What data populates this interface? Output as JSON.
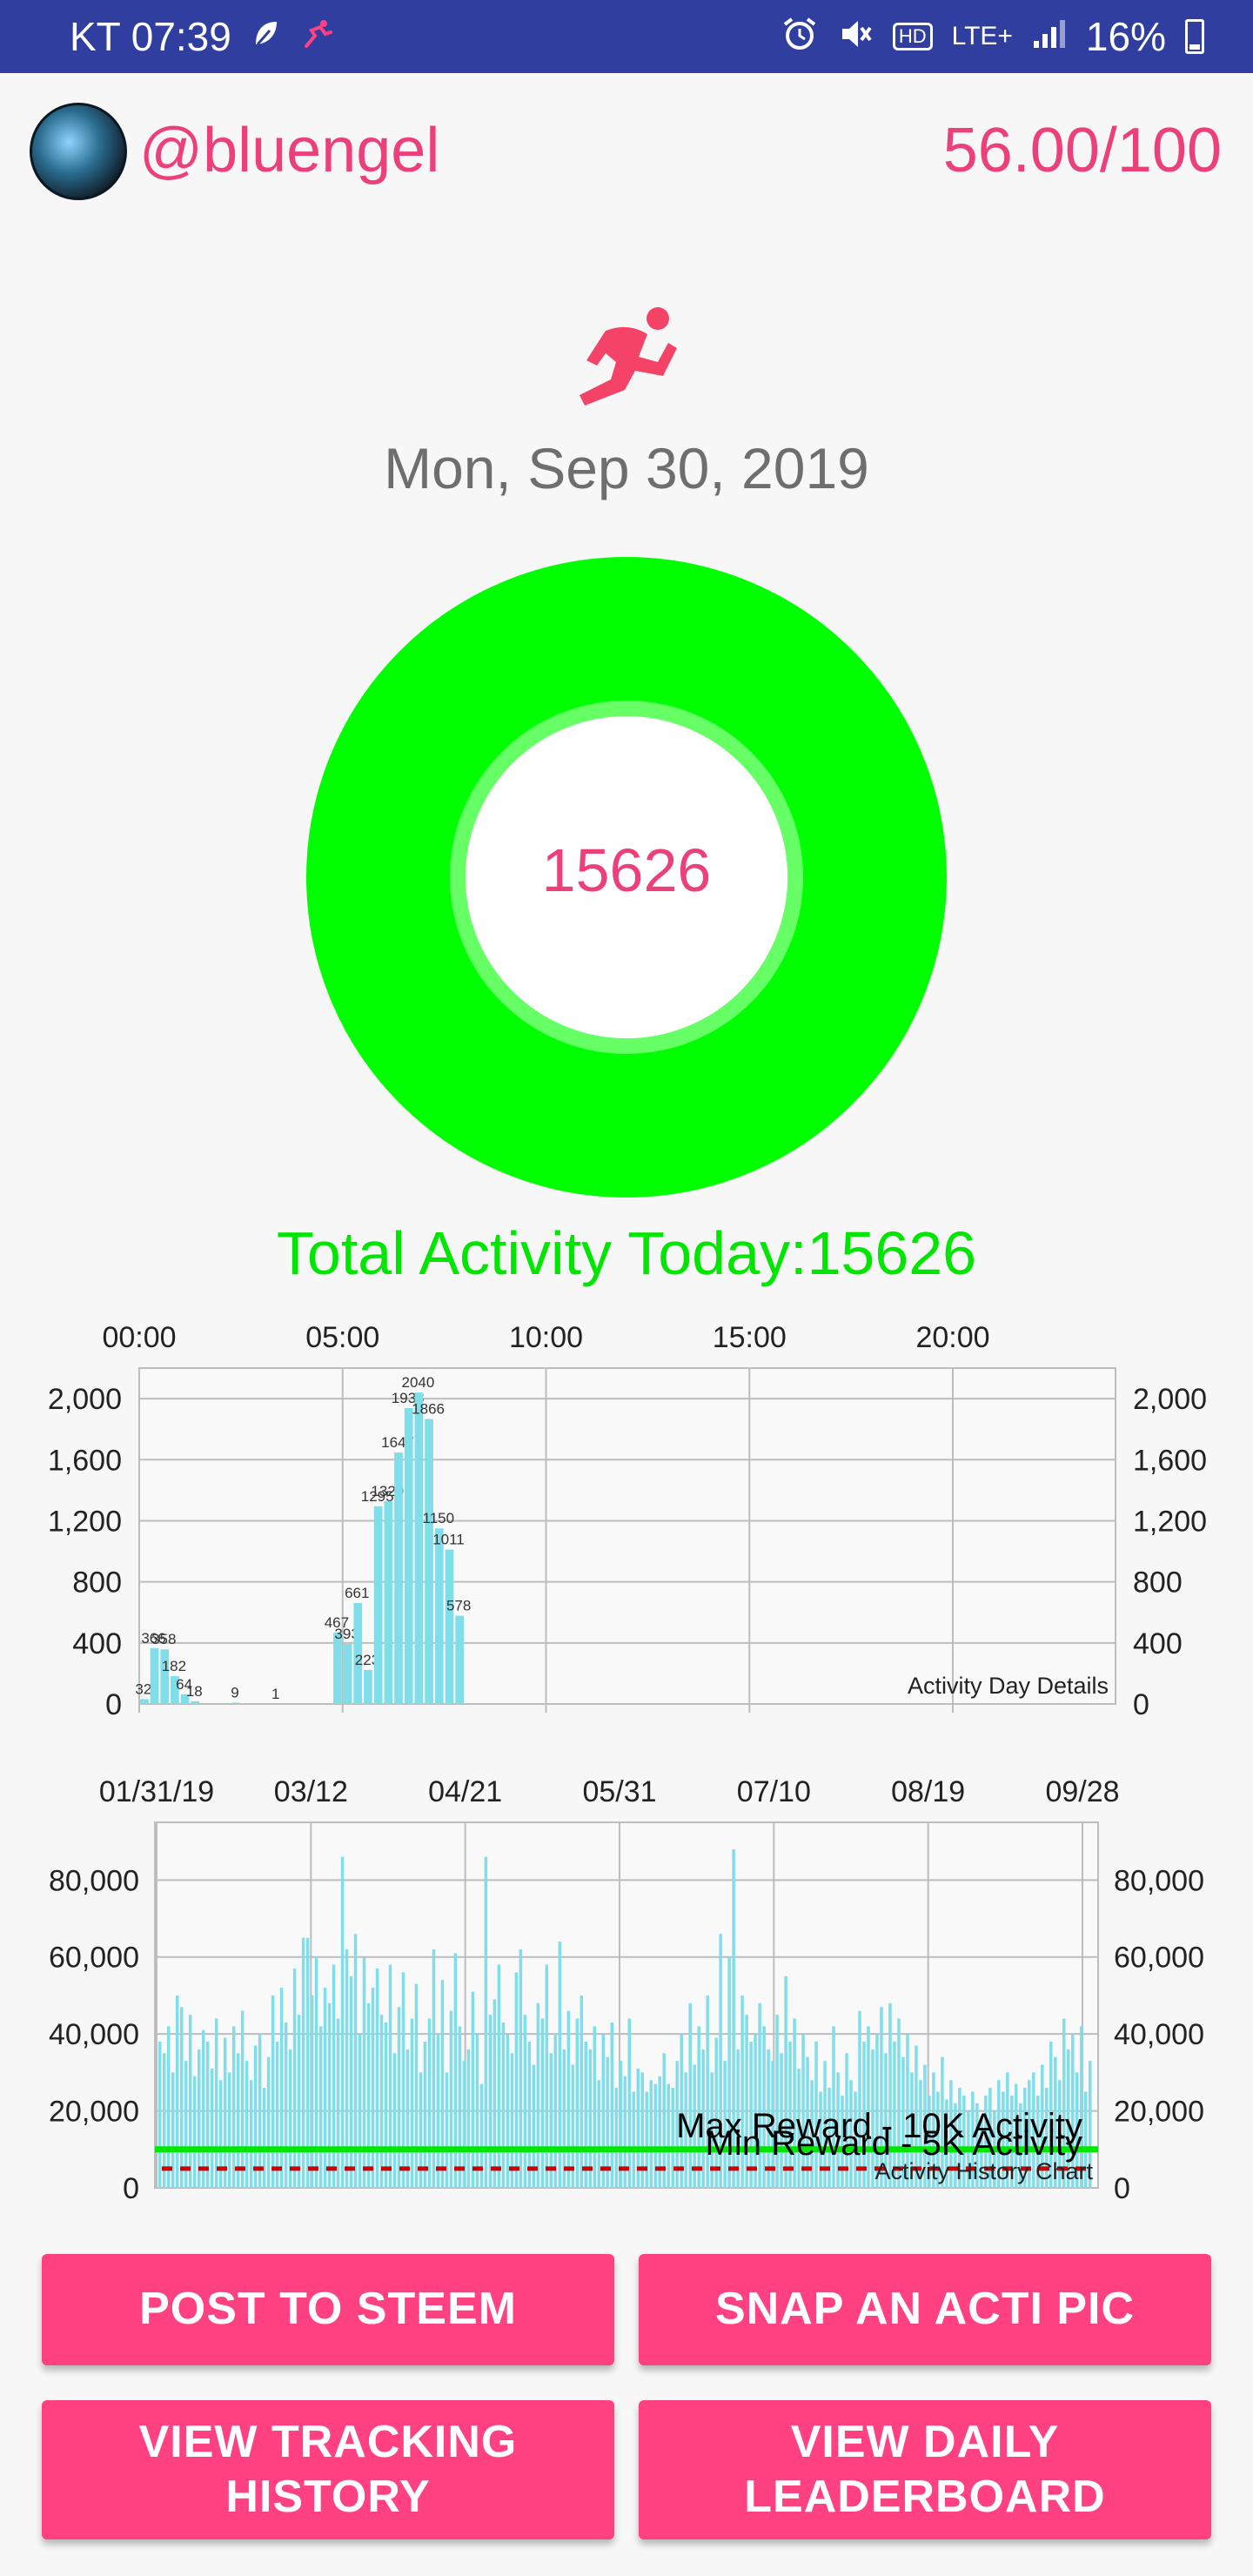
{
  "status_bar": {
    "carrier_time": "KT 07:39",
    "battery": "16%",
    "left_icons": [
      "leaf-icon",
      "runner-notification-icon"
    ],
    "right_icons": [
      "alarm-icon",
      "mute-icon",
      "hd-icon",
      "lte-icon",
      "signal-icon",
      "battery-icon"
    ],
    "lte_label": "LTE+",
    "hd_label": "HD"
  },
  "header": {
    "username": "@bluengel",
    "score": "56.00/100"
  },
  "date": "Mon, Sep 30, 2019",
  "donut": {
    "value": "15626",
    "progress": 1.0,
    "ring_color": "#00ff00",
    "inner_ring_color": "#66ff66",
    "value_color": "#ec407a"
  },
  "total_activity_label": "Total Activity Today:15626",
  "colors": {
    "accent": "#ec407a",
    "button": "#ff4081",
    "statusbar": "#303f9f",
    "bar": "#80deea",
    "max_line": "#00e600",
    "min_line": "#cc0000"
  },
  "chart_data": [
    {
      "type": "bar",
      "title": "Activity Day Details",
      "x_tick_labels": [
        "00:00",
        "05:00",
        "10:00",
        "15:00",
        "20:00"
      ],
      "y_tick_labels": [
        "0",
        "400",
        "800",
        "1,200",
        "1,600",
        "2,000"
      ],
      "ylim": [
        0,
        2200
      ],
      "grid": true,
      "x_unit": "hours",
      "xlim": [
        0,
        24
      ],
      "x": [
        0.0,
        0.25,
        0.5,
        0.75,
        1.0,
        1.25,
        1.5,
        2.25,
        3.25,
        4.75,
        5.0,
        5.25,
        5.5,
        5.75,
        6.0,
        6.25,
        6.5,
        6.75,
        7.0,
        7.25,
        7.5,
        7.75
      ],
      "values": [
        32,
        366,
        358,
        182,
        64,
        18,
        0,
        9,
        1,
        467,
        393,
        661,
        223,
        1295,
        1329,
        1647,
        1938,
        2040,
        1866,
        1150,
        1011,
        578
      ],
      "data_labels": [
        "32",
        "366",
        "358",
        "182",
        "64",
        "18",
        "",
        "9",
        "1",
        "467",
        "393",
        "661",
        "223",
        "1295",
        "1329",
        "1647",
        "1938",
        "2040",
        "1866",
        "1150",
        "1011",
        "578"
      ]
    },
    {
      "type": "bar",
      "title": "Activity History Chart",
      "x_tick_labels": [
        "01/31/19",
        "03/12",
        "04/21",
        "05/31",
        "07/10",
        "08/19",
        "09/28"
      ],
      "y_tick_labels": [
        "0",
        "20,000",
        "40,000",
        "60,000",
        "80,000"
      ],
      "ylim": [
        0,
        95000
      ],
      "grid": true,
      "x_start": "01/31/19",
      "x_end": "09/30/19",
      "values": [
        38000,
        35000,
        42000,
        30000,
        50000,
        47000,
        33000,
        45000,
        29000,
        36000,
        41000,
        38000,
        31000,
        44000,
        28000,
        39000,
        30000,
        42000,
        35000,
        46000,
        33000,
        28000,
        37000,
        40000,
        26000,
        34000,
        50000,
        38000,
        52000,
        43000,
        36000,
        57000,
        45000,
        65000,
        65000,
        50000,
        60000,
        42000,
        52000,
        48000,
        58000,
        44000,
        86000,
        62000,
        55000,
        66000,
        40000,
        60000,
        48000,
        52000,
        57000,
        45000,
        43000,
        58000,
        35000,
        47000,
        56000,
        36000,
        44000,
        53000,
        30000,
        38000,
        44000,
        62000,
        40000,
        54000,
        30000,
        46000,
        61000,
        42000,
        33000,
        36000,
        51000,
        40000,
        27000,
        86000,
        45000,
        49000,
        58000,
        43000,
        40000,
        35000,
        56000,
        62000,
        45000,
        38000,
        32000,
        48000,
        44000,
        58000,
        35000,
        40000,
        64000,
        36000,
        46000,
        32000,
        44000,
        50000,
        38000,
        36000,
        42000,
        28000,
        40000,
        34000,
        43000,
        26000,
        33000,
        29000,
        44000,
        25000,
        31000,
        30000,
        25000,
        28000,
        27000,
        29000,
        35000,
        27000,
        26000,
        33000,
        40000,
        30000,
        48000,
        32000,
        42000,
        36000,
        50000,
        30000,
        39000,
        66000,
        33000,
        60000,
        88000,
        36000,
        50000,
        45000,
        38000,
        40000,
        48000,
        42000,
        36000,
        33000,
        45000,
        35000,
        55000,
        38000,
        44000,
        31000,
        40000,
        34000,
        28000,
        38000,
        25000,
        33000,
        26000,
        42000,
        30000,
        24000,
        35000,
        28000,
        25000,
        46000,
        38000,
        42000,
        36000,
        40000,
        47000,
        35000,
        48000,
        38000,
        44000,
        34000,
        40000,
        30000,
        37000,
        28000,
        32000,
        24000,
        30000,
        25000,
        34000,
        23000,
        28000,
        22000,
        26000,
        24000,
        20000,
        25000,
        22000,
        18000,
        24000,
        26000,
        20000,
        28000,
        25000,
        30000,
        24000,
        27000,
        22000,
        26000,
        28000,
        30000,
        24000,
        32000,
        26000,
        38000,
        34000,
        28000,
        44000,
        36000,
        40000,
        30000,
        42000,
        25000,
        33000
      ],
      "series": [
        {
          "name": "Max Reward - 10K Activity",
          "type": "line",
          "value": 10000,
          "color": "#00e600"
        },
        {
          "name": "Min Reward - 5K Activity",
          "type": "line",
          "value": 5000,
          "color": "#cc0000",
          "dashed": true
        }
      ]
    }
  ],
  "buttons": {
    "post": "POST TO STEEM",
    "snap": "SNAP AN ACTI PIC",
    "track_line1": "VIEW TRACKING",
    "track_line2": "HISTORY",
    "leader_line1": "VIEW DAILY",
    "leader_line2": "LEADERBOARD"
  }
}
